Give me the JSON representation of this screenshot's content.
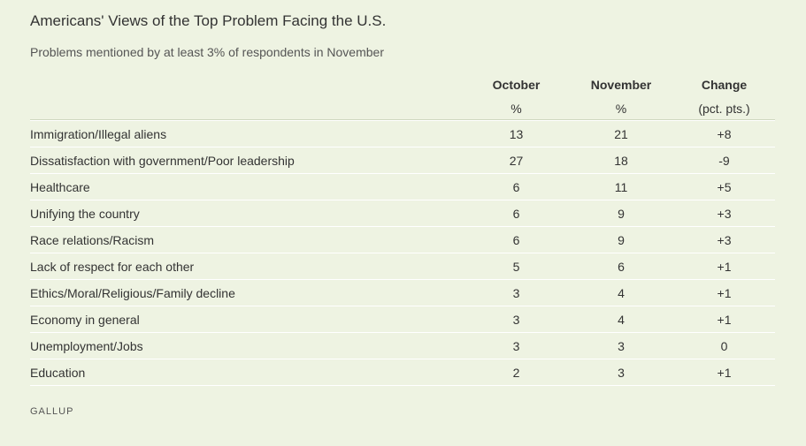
{
  "title": "Americans' Views of the Top Problem Facing the U.S.",
  "subtitle": "Problems mentioned by at least 3% of respondents in November",
  "source": "GALLUP",
  "chart_data": {
    "type": "table",
    "columns": [
      "",
      "October",
      "November",
      "Change"
    ],
    "units": [
      "",
      "%",
      "%",
      "(pct. pts.)"
    ],
    "rows": [
      {
        "problem": "Immigration/Illegal aliens",
        "october": "13",
        "november": "21",
        "change": "+8"
      },
      {
        "problem": "Dissatisfaction with government/Poor leadership",
        "october": "27",
        "november": "18",
        "change": "-9"
      },
      {
        "problem": "Healthcare",
        "october": "6",
        "november": "11",
        "change": "+5"
      },
      {
        "problem": "Unifying the country",
        "october": "6",
        "november": "9",
        "change": "+3"
      },
      {
        "problem": "Race relations/Racism",
        "october": "6",
        "november": "9",
        "change": "+3"
      },
      {
        "problem": "Lack of respect for each other",
        "october": "5",
        "november": "6",
        "change": "+1"
      },
      {
        "problem": "Ethics/Moral/Religious/Family decline",
        "october": "3",
        "november": "4",
        "change": "+1"
      },
      {
        "problem": "Economy in general",
        "october": "3",
        "november": "4",
        "change": "+1"
      },
      {
        "problem": "Unemployment/Jobs",
        "october": "3",
        "november": "3",
        "change": "0"
      },
      {
        "problem": "Education",
        "october": "2",
        "november": "3",
        "change": "+1"
      }
    ]
  }
}
